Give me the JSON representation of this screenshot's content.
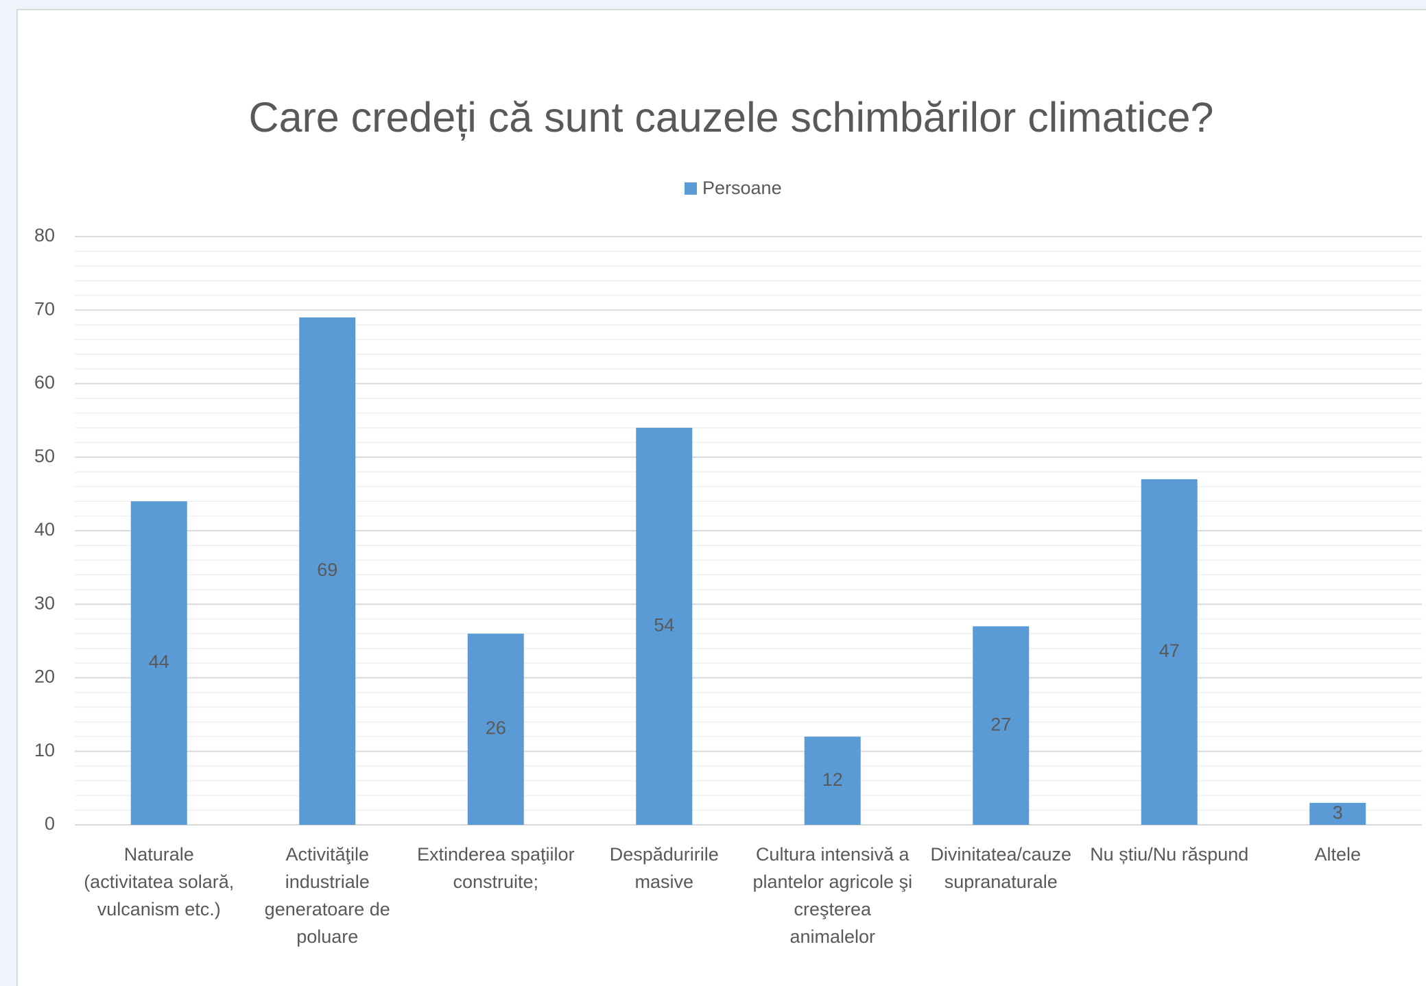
{
  "chart_data": {
    "type": "bar",
    "title": "Care credeți că sunt cauzele schimbărilor climatice?",
    "categories": [
      "Naturale (activitatea solară, vulcanism etc.)",
      "Activităţile industriale generatoare de poluare",
      "Extinderea spaţiilor construite;",
      "Despăduririle masive",
      "Cultura intensivă a plantelor agricole şi creşterea animalelor",
      "Divinitatea/cauze supranaturale",
      "Nu știu/Nu răspund",
      "Altele"
    ],
    "series": [
      {
        "name": "Persoane",
        "color": "#5b9bd5",
        "values": [
          44,
          69,
          26,
          54,
          12,
          27,
          47,
          3
        ]
      }
    ],
    "ylim": [
      0,
      80
    ],
    "yticks": [
      0,
      10,
      20,
      30,
      40,
      50,
      60,
      70,
      80
    ],
    "minor_yticks": [
      2,
      4,
      6,
      8,
      12,
      14,
      16,
      18,
      22,
      24,
      26,
      28,
      32,
      34,
      36,
      38,
      42,
      44,
      46,
      48,
      52,
      54,
      56,
      58,
      62,
      64,
      66,
      68,
      72,
      74,
      76,
      78
    ],
    "grid": true,
    "legend": "top"
  }
}
